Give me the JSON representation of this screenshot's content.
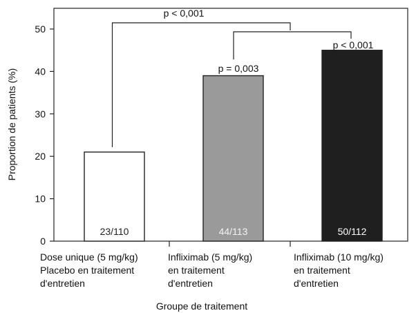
{
  "chart_data": {
    "type": "bar",
    "ylabel": "Proportion de patients (%)",
    "xlabel": "Groupe de traitement",
    "ylim": [
      0,
      50
    ],
    "yticks": [
      "0",
      "10",
      "20",
      "30",
      "40",
      "50"
    ],
    "categories": [
      [
        "Dose unique (5 mg/kg)",
        "Placebo en traitement",
        "d'entretien"
      ],
      [
        "Infliximab (5 mg/kg)",
        "en traitement",
        "d'entretien"
      ],
      [
        "Infliximab (10 mg/kg)",
        "en traitement",
        "d'entretien"
      ]
    ],
    "values": [
      21,
      39,
      45
    ],
    "bar_labels": [
      "23/110",
      "44/113",
      "50/112"
    ],
    "bar_colors": [
      "#ffffff",
      "#9a9a9a",
      "#1f1f1f"
    ],
    "bar_label_colors": [
      "#222222",
      "#f2f2f2",
      "#ffffff"
    ],
    "annotations": [
      {
        "text": "p < 0,001",
        "from": 0,
        "to": 2
      },
      {
        "text": "p = 0,003",
        "bar": 1
      },
      {
        "text": "p < 0,001",
        "bar": 2
      }
    ]
  }
}
